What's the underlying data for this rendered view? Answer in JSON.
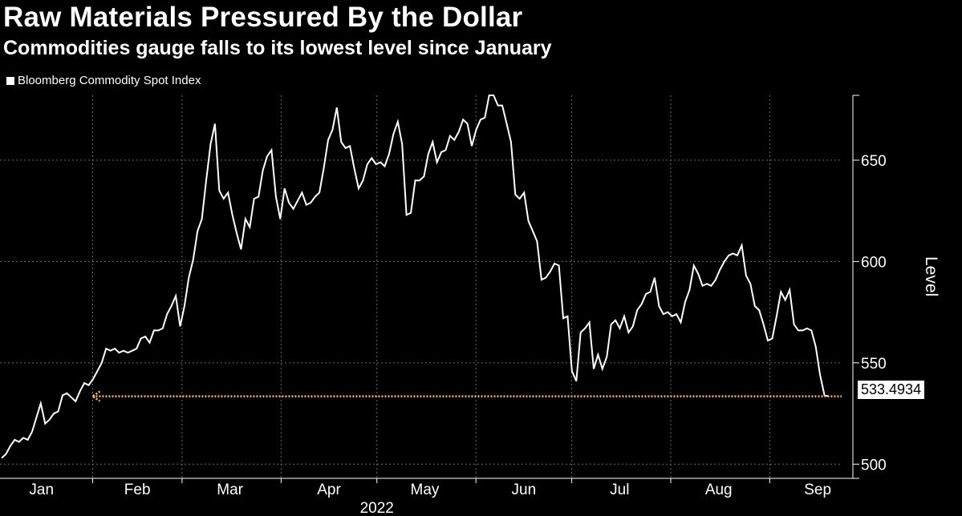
{
  "header": {
    "title": "Raw Materials Pressured By the Dollar",
    "subtitle": "Commodities gauge falls to its lowest level since January"
  },
  "colors": {
    "line": "#ffffff",
    "annotation": "#f4b97f",
    "grid": "#6b6b6b",
    "background": "#000000"
  },
  "chart_data": {
    "type": "line",
    "series": [
      {
        "name": "Bloomberg Commodity Spot Index",
        "values": [
          503,
          505,
          509,
          512,
          511,
          513,
          512,
          516,
          523,
          530,
          520,
          522,
          525,
          526,
          534,
          535,
          533,
          531,
          536,
          540,
          539,
          542,
          546,
          550,
          557,
          556,
          557,
          555,
          556,
          555,
          556,
          557,
          562,
          563,
          560,
          566,
          566,
          567,
          574,
          578,
          583,
          568,
          578,
          592,
          601,
          615,
          621,
          640,
          658,
          668,
          635,
          631,
          634,
          623,
          614,
          606,
          621,
          617,
          631,
          632,
          645,
          652,
          655,
          632,
          621,
          636,
          629,
          626,
          630,
          634,
          628,
          629,
          632,
          634,
          646,
          660,
          665,
          676,
          659,
          656,
          657,
          646,
          636,
          640,
          648,
          651,
          648,
          649,
          647,
          653,
          663,
          669,
          658,
          623,
          624,
          640,
          640,
          642,
          653,
          659,
          649,
          654,
          655,
          662,
          660,
          664,
          670,
          668,
          657,
          665,
          670,
          671,
          682,
          682,
          677,
          677,
          668,
          659,
          633,
          631,
          634,
          620,
          615,
          610,
          591,
          592,
          595,
          599,
          598,
          572,
          573,
          546,
          541,
          565,
          567,
          570,
          547,
          554,
          547,
          553,
          569,
          571,
          567,
          573,
          565,
          568,
          576,
          579,
          584,
          585,
          592,
          578,
          574,
          575,
          573,
          574,
          570,
          580,
          586,
          598,
          594,
          588,
          589,
          588,
          591,
          596,
          600,
          603,
          604,
          603,
          608,
          593,
          589,
          578,
          576,
          569,
          561,
          562,
          573,
          585,
          581,
          586,
          569,
          566,
          566,
          567,
          566,
          558,
          544,
          534,
          533.4934
        ]
      }
    ],
    "x_start": "2022-01-03",
    "x_end": "2022-09-23",
    "x_tick_labels": [
      "Jan",
      "Feb",
      "Mar",
      "Apr",
      "May",
      "Jun",
      "Jul",
      "Aug",
      "Sep"
    ],
    "x_year_label": "2022",
    "ylabel": "Level",
    "ylim": [
      493,
      682
    ],
    "y_ticks": [
      500,
      550,
      600,
      650
    ],
    "last_value_label": "533.4934",
    "annotation": {
      "type": "dotted-arrow",
      "from_date": "2022-09-23",
      "to_date": "2022-01-31",
      "level": 533.4934
    },
    "grid": true,
    "legend": "top-left"
  }
}
